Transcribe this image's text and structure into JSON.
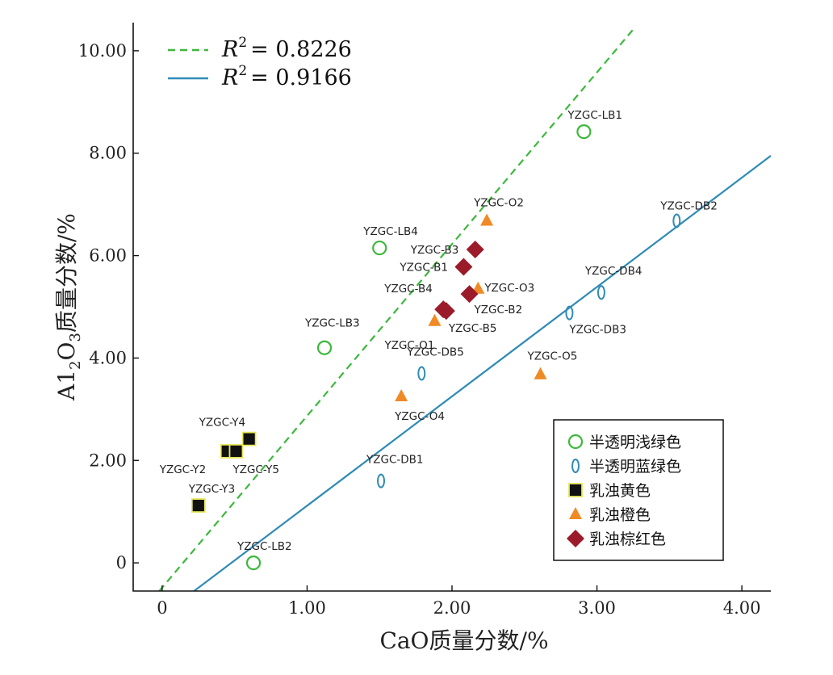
{
  "chart_data": {
    "type": "scatter",
    "title": "",
    "xlabel": "CaO质量分数/%",
    "ylabel_parts": {
      "a": "A1",
      "sub1": "2",
      "b": "O",
      "sub2": "3",
      "c": "质量分数/%"
    },
    "xlim": [
      -0.2,
      4.2
    ],
    "ylim": [
      -0.55,
      10.55
    ],
    "x_ticks": [
      0,
      1,
      2,
      3,
      4
    ],
    "x_tick_labels": [
      "0",
      "1.00",
      "2.00",
      "3.00",
      "4.00"
    ],
    "y_ticks": [
      0,
      2,
      4,
      6,
      8,
      10
    ],
    "y_tick_labels": [
      "0",
      "2.00",
      "4.00",
      "6.00",
      "8.00",
      "10.00"
    ],
    "grid": false,
    "legend_position": "bottom-right",
    "fit_lines": [
      {
        "style": "dashed",
        "color": "#3cb83c",
        "x": [
          -0.02,
          3.26
        ],
        "y": [
          -0.55,
          10.45
        ],
        "r2_label": "R",
        "r2_sup": "2",
        "r2_value": "= 0.8226"
      },
      {
        "style": "solid",
        "color": "#2f8bb5",
        "x": [
          0.22,
          4.2
        ],
        "y": [
          -0.55,
          7.95
        ],
        "r2_label": "R",
        "r2_sup": "2",
        "r2_value": "= 0.9166"
      }
    ],
    "series": [
      {
        "name": "半透明浅绿色",
        "marker": "circle",
        "color": "#3cb83c",
        "points": [
          {
            "label": "YZGC-LB1",
            "x": 2.91,
            "y": 8.42
          },
          {
            "label": "YZGC-LB4",
            "x": 1.5,
            "y": 6.15
          },
          {
            "label": "YZGC-LB3",
            "x": 1.12,
            "y": 4.2
          },
          {
            "label": "YZGC-LB2",
            "x": 0.63,
            "y": 0.0
          }
        ]
      },
      {
        "name": "半透明蓝绿色",
        "marker": "ellipse",
        "color": "#2f8bb5",
        "points": [
          {
            "label": "YZGC-DB2",
            "x": 3.55,
            "y": 6.68
          },
          {
            "label": "YZGC-DB4",
            "x": 3.03,
            "y": 5.28
          },
          {
            "label": "YZGC-DB3",
            "x": 2.81,
            "y": 4.88
          },
          {
            "label": "YZGC-DB5",
            "x": 1.79,
            "y": 3.7
          },
          {
            "label": "YZGC-DB1",
            "x": 1.51,
            "y": 1.6
          }
        ]
      },
      {
        "name": "乳浊黄色",
        "marker": "square",
        "color": "#111111",
        "points": [
          {
            "label": "YZGC-Y4",
            "x": 0.6,
            "y": 2.42
          },
          {
            "label": "YZGC-Y2",
            "x": 0.45,
            "y": 2.18
          },
          {
            "label": "YZGC-Y5",
            "x": 0.51,
            "y": 2.18
          },
          {
            "label": "YZGC-Y3",
            "x": 0.25,
            "y": 1.12
          }
        ]
      },
      {
        "name": "乳浊橙色",
        "marker": "triangle",
        "color": "#f08a24",
        "points": [
          {
            "label": "YZGC-O2",
            "x": 2.24,
            "y": 6.68
          },
          {
            "label": "YZGC-O3",
            "x": 2.18,
            "y": 5.35
          },
          {
            "label": "YZGC-O1",
            "x": 1.88,
            "y": 4.72
          },
          {
            "label": "YZGC-O5",
            "x": 2.61,
            "y": 3.68
          },
          {
            "label": "YZGC-O4",
            "x": 1.65,
            "y": 3.25
          }
        ]
      },
      {
        "name": "乳浊棕红色",
        "marker": "diamond",
        "color": "#9b1b2a",
        "points": [
          {
            "label": "YZGC-B3",
            "x": 2.16,
            "y": 6.12
          },
          {
            "label": "YZGC-B1",
            "x": 2.08,
            "y": 5.78
          },
          {
            "label": "YZGC-B2",
            "x": 2.12,
            "y": 5.25
          },
          {
            "label": "YZGC-B4",
            "x": 1.94,
            "y": 4.95
          },
          {
            "label": "YZGC-B5",
            "x": 1.96,
            "y": 4.92
          }
        ]
      }
    ]
  }
}
